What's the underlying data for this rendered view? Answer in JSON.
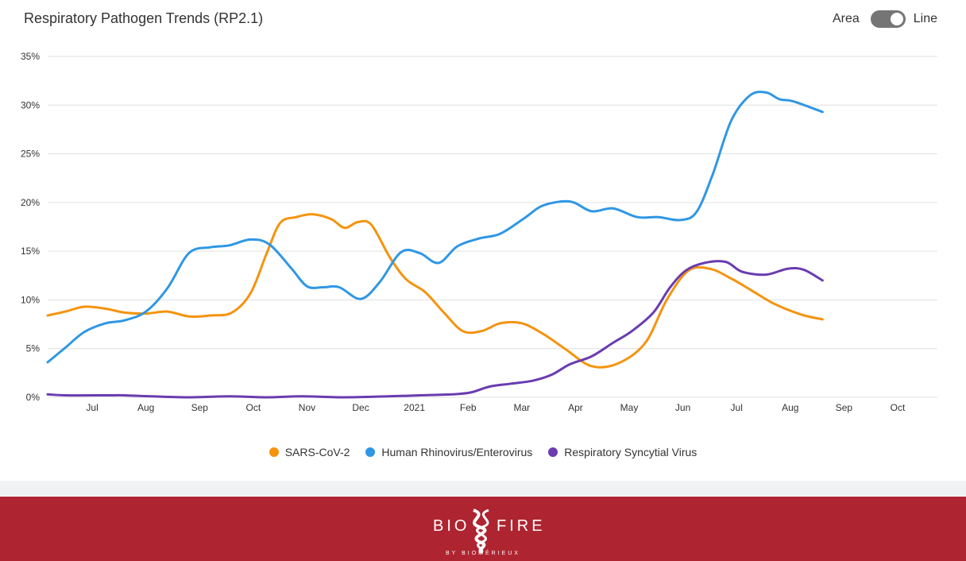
{
  "header": {
    "title": "Respiratory Pathogen Trends (RP2.1)",
    "toggle": {
      "left_label": "Area",
      "right_label": "Line",
      "selected": "Line"
    }
  },
  "colors": {
    "sars": "#f5930e",
    "hrv": "#2f97e4",
    "rsv": "#6a3cb0",
    "footer": "#ae2430",
    "grid": "#e0e0e0"
  },
  "chart_data": {
    "type": "line",
    "title": "Respiratory Pathogen Trends (RP2.1)",
    "xlabel": "",
    "ylabel": "",
    "y_ticks": [
      "0%",
      "5%",
      "10%",
      "15%",
      "20%",
      "25%",
      "30%",
      "35%"
    ],
    "ylim": [
      0,
      35
    ],
    "x_ticks": [
      {
        "label": "Jul",
        "x": 7.5
      },
      {
        "label": "Aug",
        "x": 8.5
      },
      {
        "label": "Sep",
        "x": 9.5
      },
      {
        "label": "Oct",
        "x": 10.5
      },
      {
        "label": "Nov",
        "x": 11.5
      },
      {
        "label": "Dec",
        "x": 12.5
      },
      {
        "label": "2021",
        "x": 13.5
      },
      {
        "label": "Feb",
        "x": 14.5
      },
      {
        "label": "Mar",
        "x": 15.5
      },
      {
        "label": "Apr",
        "x": 16.5
      },
      {
        "label": "May",
        "x": 17.5
      },
      {
        "label": "Jun",
        "x": 18.5
      },
      {
        "label": "Jul",
        "x": 19.5
      },
      {
        "label": "Aug",
        "x": 20.5
      },
      {
        "label": "Sep",
        "x": 21.5
      },
      {
        "label": "Oct",
        "x": 22.5
      }
    ],
    "xlim": [
      6.67,
      23.24
    ],
    "grid": true,
    "legend_position": "bottom",
    "series": [
      {
        "name": "SARS-CoV-2",
        "color": "#f5930e",
        "points": [
          [
            6.67,
            8.4
          ],
          [
            7.0,
            8.8
          ],
          [
            7.35,
            9.3
          ],
          [
            7.75,
            9.1
          ],
          [
            8.1,
            8.7
          ],
          [
            8.5,
            8.6
          ],
          [
            8.9,
            8.8
          ],
          [
            9.3,
            8.3
          ],
          [
            9.7,
            8.4
          ],
          [
            10.1,
            8.7
          ],
          [
            10.45,
            10.7
          ],
          [
            10.75,
            14.8
          ],
          [
            11.0,
            17.9
          ],
          [
            11.3,
            18.5
          ],
          [
            11.6,
            18.8
          ],
          [
            11.95,
            18.3
          ],
          [
            12.2,
            17.4
          ],
          [
            12.45,
            18.0
          ],
          [
            12.7,
            17.7
          ],
          [
            13.05,
            14.3
          ],
          [
            13.35,
            12.1
          ],
          [
            13.7,
            10.8
          ],
          [
            14.05,
            8.7
          ],
          [
            14.4,
            6.8
          ],
          [
            14.75,
            6.8
          ],
          [
            15.1,
            7.6
          ],
          [
            15.5,
            7.6
          ],
          [
            15.9,
            6.5
          ],
          [
            16.3,
            5.0
          ],
          [
            16.8,
            3.2
          ],
          [
            17.3,
            3.5
          ],
          [
            17.8,
            5.6
          ],
          [
            18.2,
            10.0
          ],
          [
            18.6,
            13.0
          ],
          [
            19.0,
            13.2
          ],
          [
            19.4,
            12.2
          ],
          [
            19.8,
            10.9
          ],
          [
            20.2,
            9.6
          ],
          [
            20.7,
            8.5
          ],
          [
            21.1,
            8.0
          ]
        ]
      },
      {
        "name": "Human Rhinovirus/Enterovirus",
        "color": "#2f97e4",
        "points": [
          [
            6.67,
            3.6
          ],
          [
            7.0,
            5.1
          ],
          [
            7.35,
            6.7
          ],
          [
            7.75,
            7.6
          ],
          [
            8.1,
            7.9
          ],
          [
            8.5,
            8.8
          ],
          [
            8.9,
            11.2
          ],
          [
            9.3,
            14.8
          ],
          [
            9.7,
            15.4
          ],
          [
            10.05,
            15.6
          ],
          [
            10.45,
            16.2
          ],
          [
            10.8,
            15.7
          ],
          [
            11.2,
            13.3
          ],
          [
            11.5,
            11.4
          ],
          [
            11.8,
            11.3
          ],
          [
            12.1,
            11.3
          ],
          [
            12.5,
            10.1
          ],
          [
            12.85,
            11.8
          ],
          [
            13.25,
            14.9
          ],
          [
            13.6,
            14.8
          ],
          [
            13.95,
            13.8
          ],
          [
            14.3,
            15.5
          ],
          [
            14.7,
            16.3
          ],
          [
            15.1,
            16.8
          ],
          [
            15.55,
            18.4
          ],
          [
            15.9,
            19.7
          ],
          [
            16.4,
            20.1
          ],
          [
            16.8,
            19.1
          ],
          [
            17.2,
            19.4
          ],
          [
            17.65,
            18.5
          ],
          [
            18.05,
            18.5
          ],
          [
            18.45,
            18.2
          ],
          [
            18.75,
            19.0
          ],
          [
            19.05,
            22.8
          ],
          [
            19.4,
            28.4
          ],
          [
            19.75,
            31.0
          ],
          [
            20.05,
            31.3
          ],
          [
            20.3,
            30.6
          ],
          [
            20.55,
            30.4
          ],
          [
            21.1,
            29.3
          ]
        ]
      },
      {
        "name": "Respiratory Syncytial Virus",
        "color": "#6a3cb0",
        "points": [
          [
            6.67,
            0.3
          ],
          [
            7.0,
            0.2
          ],
          [
            7.75,
            0.2
          ],
          [
            8.1,
            0.2
          ],
          [
            8.6,
            0.1
          ],
          [
            9.3,
            0.0
          ],
          [
            10.05,
            0.1
          ],
          [
            10.75,
            0.0
          ],
          [
            11.4,
            0.1
          ],
          [
            12.2,
            0.0
          ],
          [
            13.0,
            0.1
          ],
          [
            13.6,
            0.2
          ],
          [
            14.2,
            0.3
          ],
          [
            14.55,
            0.5
          ],
          [
            14.9,
            1.1
          ],
          [
            15.3,
            1.4
          ],
          [
            15.7,
            1.7
          ],
          [
            16.05,
            2.3
          ],
          [
            16.4,
            3.4
          ],
          [
            16.8,
            4.2
          ],
          [
            17.2,
            5.6
          ],
          [
            17.55,
            6.8
          ],
          [
            17.95,
            8.7
          ],
          [
            18.25,
            11.2
          ],
          [
            18.55,
            13.0
          ],
          [
            18.9,
            13.8
          ],
          [
            19.3,
            13.9
          ],
          [
            19.6,
            12.9
          ],
          [
            20.05,
            12.6
          ],
          [
            20.45,
            13.2
          ],
          [
            20.75,
            13.1
          ],
          [
            21.1,
            12.0
          ]
        ]
      }
    ]
  },
  "legend": {
    "items": [
      {
        "label": "SARS-CoV-2",
        "color": "#f5930e"
      },
      {
        "label": "Human Rhinovirus/Enterovirus",
        "color": "#2f97e4"
      },
      {
        "label": "Respiratory Syncytial Virus",
        "color": "#6a3cb0"
      }
    ]
  },
  "footer": {
    "logo_text": "BIOFIRE",
    "logo_sub": "BY BIOMÉRIEUX"
  }
}
